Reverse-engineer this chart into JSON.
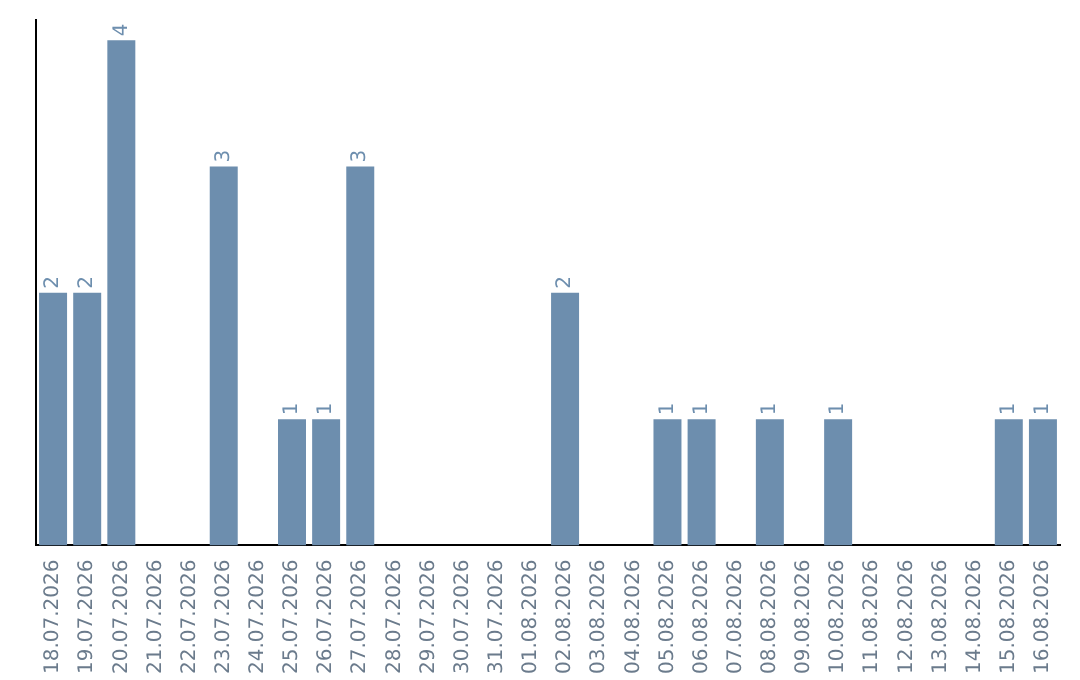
{
  "chart_data": {
    "type": "bar",
    "categories": [
      "18.07.2026",
      "19.07.2026",
      "20.07.2026",
      "21.07.2026",
      "22.07.2026",
      "23.07.2026",
      "24.07.2026",
      "25.07.2026",
      "26.07.2026",
      "27.07.2026",
      "28.07.2026",
      "29.07.2026",
      "30.07.2026",
      "31.07.2026",
      "01.08.2026",
      "02.08.2026",
      "03.08.2026",
      "04.08.2026",
      "05.08.2026",
      "06.08.2026",
      "07.08.2026",
      "08.08.2026",
      "09.08.2026",
      "10.08.2026",
      "11.08.2026",
      "12.08.2026",
      "13.08.2026",
      "14.08.2026",
      "15.08.2026",
      "16.08.2026"
    ],
    "values": [
      2,
      2,
      4,
      0,
      0,
      3,
      0,
      1,
      1,
      3,
      0,
      0,
      0,
      0,
      0,
      2,
      0,
      0,
      1,
      1,
      0,
      1,
      0,
      1,
      0,
      0,
      0,
      0,
      1,
      1
    ],
    "value_labels": [
      "2",
      "2",
      "4",
      null,
      null,
      "3",
      null,
      "1",
      "1",
      "3",
      null,
      null,
      null,
      null,
      null,
      "2",
      null,
      null,
      "1",
      "1",
      null,
      "1",
      null,
      "1",
      null,
      null,
      null,
      null,
      "1",
      "1"
    ],
    "color": "#6d8eae",
    "grid": false,
    "legend": false,
    "tick_labels": "x"
  }
}
